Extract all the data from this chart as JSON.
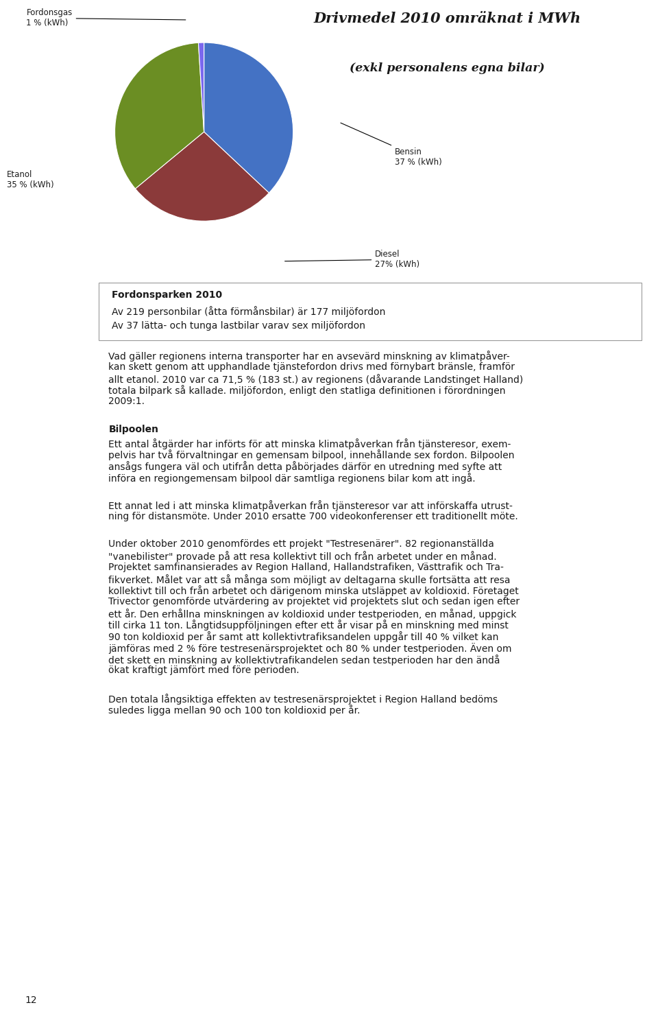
{
  "title_line1": "Drivmedel 2010 omräknat i MWh",
  "title_line2": "(exkl personalens egna bilar)",
  "pie_values": [
    37,
    27,
    35,
    1
  ],
  "pie_colors": [
    "#4472C4",
    "#8B3A3A",
    "#6B8E23",
    "#7B68EE"
  ],
  "box_title": "Fordonsparken 2010",
  "box_line1": "Av 219 personbilar (åtta förmånsbilar) är 177 miljöfordon",
  "box_line2": "Av 37 lätta- och tunga lastbilar varav sex miljöfordon",
  "para1": "Vad gäller regionens interna transporter har en avsevärd minskning av klimatpåver-\nkan skett genom att upphandlade tjänstefordon drivs med förnybart bränsle, framför\nallt etanol. 2010 var ca 71,5 % (183 st.) av regionens (dåvarande Landstinget Halland)\ntotala bilpark så kallade. miljöfordon, enligt den statliga definitionen i förordningen\n2009:1.",
  "heading2": "Bilpoolen",
  "para2": "Ett antal åtgärder har införts för att minska klimatpåverkan från tjänsteresor, exem-\npelvis har två förvaltningar en gemensam bilpool, innehållande sex fordon. Bilpoolen\nansågs fungera väl och utifrån detta påbörjades därför en utredning med syfte att\ninföra en regiongemensam bilpool där samtliga regionens bilar kom att ingå.",
  "para3": "Ett annat led i att minska klimatpåverkan från tjänsteresor var att införskaffa utrust-\nning för distansmöte. Under 2010 ersatte 700 videokonferenser ett traditionellt möte.",
  "para4": "Under oktober 2010 genomfördes ett projekt \"Testresenärer\". 82 regionanställda\n\"vanebilister\" provade på att resa kollektivt till och från arbetet under en månad.\nProjektet samfinansierades av Region Halland, Hallandstrafiken, Västtrafik och Tra-\nfikverket. Målet var att så många som möjligt av deltagarna skulle fortsätta att resa\nkollektivt till och från arbetet och därigenom minska utsläppet av koldioxid. Företaget\nTrivector genomförde utvärdering av projektet vid projektets slut och sedan igen efter\nett år. Den erhållna minskningen av koldioxid under testperioden, en månad, uppgick\ntill cirka 11 ton. Långtidsuppföljningen efter ett år visar på en minskning med minst\n90 ton koldioxid per år samt att kollektivtrafiksandelen uppgår till 40 % vilket kan\njämföras med 2 % före testresenärsprojektet och 80 % under testperioden. Även om\ndet skett en minskning av kollektivtrafikandelen sedan testperioden har den ändå\nökat kraftigt jämfört med före perioden.",
  "para5": "Den totala långsiktiga effekten av testresenärsprojektet i Region Halland bedöms\nsuledes ligga mellan 90 och 100 ton koldioxid per år.",
  "page_number": "12",
  "background_color": "#FFFFFF",
  "text_color": "#1A1A1A",
  "body_font_size": 10.0
}
